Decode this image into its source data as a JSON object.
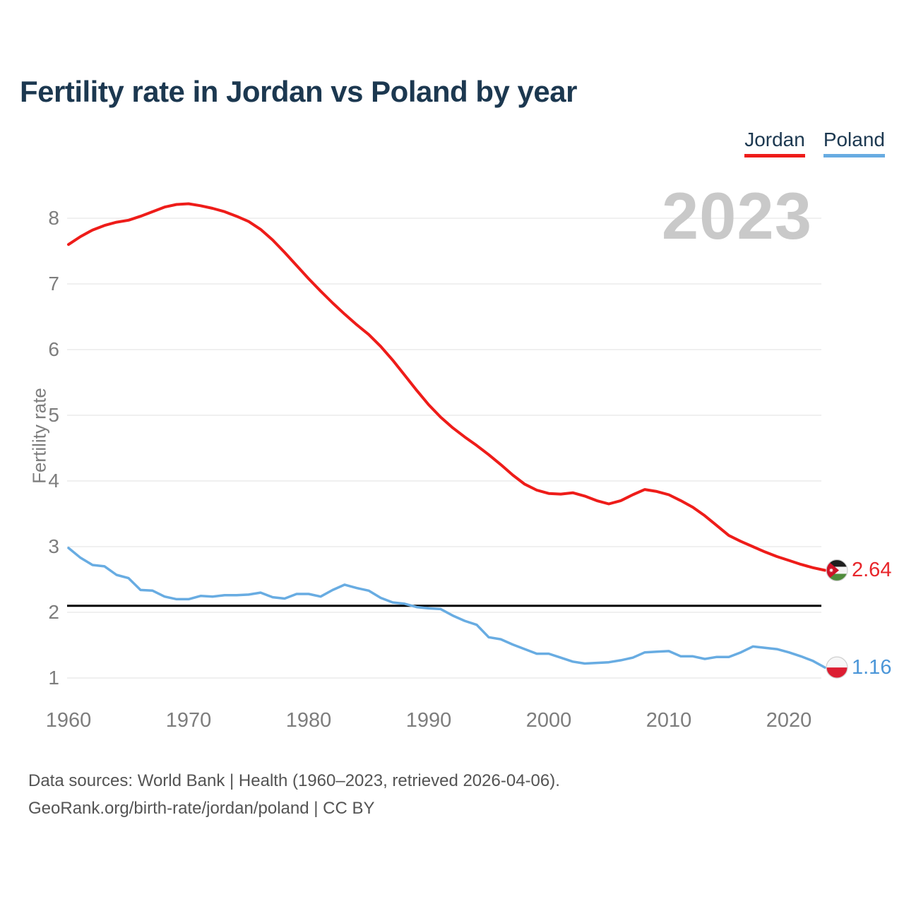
{
  "header": {
    "title": "Fertility rate in Jordan vs Poland by year"
  },
  "legend": {
    "items": [
      {
        "label": "Jordan",
        "color": "#ee1c19"
      },
      {
        "label": "Poland",
        "color": "#68ace2"
      }
    ]
  },
  "watermark": "2023",
  "footer": {
    "line1": "Data sources: World Bank | Health (1960–2023, retrieved 2026-04-06).",
    "line2": "GeoRank.org/birth-rate/jordan/poland | CC BY"
  },
  "chart_data": {
    "type": "line",
    "title": "Fertility rate in Jordan vs Poland by year",
    "xlabel": "",
    "ylabel": "Fertility rate",
    "xlim": [
      1960,
      2023
    ],
    "ylim": [
      0.9,
      8.6
    ],
    "x_ticks": [
      1960,
      1970,
      1980,
      1990,
      2000,
      2010,
      2020
    ],
    "y_ticks": [
      1,
      2,
      3,
      4,
      5,
      6,
      7,
      8
    ],
    "grid": "horizontal",
    "legend_position": "top-right",
    "watermark": "2023",
    "reference_line": {
      "value": 2.1,
      "color": "#000000"
    },
    "grid_color": "#ececec",
    "x": [
      1960,
      1961,
      1962,
      1963,
      1964,
      1965,
      1966,
      1967,
      1968,
      1969,
      1970,
      1971,
      1972,
      1973,
      1974,
      1975,
      1976,
      1977,
      1978,
      1979,
      1980,
      1981,
      1982,
      1983,
      1984,
      1985,
      1986,
      1987,
      1988,
      1989,
      1990,
      1991,
      1992,
      1993,
      1994,
      1995,
      1996,
      1997,
      1998,
      1999,
      2000,
      2001,
      2002,
      2003,
      2004,
      2005,
      2006,
      2007,
      2008,
      2009,
      2010,
      2011,
      2012,
      2013,
      2014,
      2015,
      2016,
      2017,
      2018,
      2019,
      2020,
      2021,
      2022,
      2023
    ],
    "series": [
      {
        "name": "Jordan",
        "color": "#ee1c19",
        "end_value": 2.64,
        "end_label": "2.64",
        "flag": "jordan",
        "values": [
          7.6,
          7.72,
          7.82,
          7.89,
          7.94,
          7.97,
          8.03,
          8.1,
          8.17,
          8.21,
          8.22,
          8.19,
          8.15,
          8.1,
          8.03,
          7.95,
          7.83,
          7.67,
          7.48,
          7.28,
          7.08,
          6.89,
          6.71,
          6.54,
          6.38,
          6.23,
          6.05,
          5.84,
          5.61,
          5.38,
          5.16,
          4.97,
          4.81,
          4.67,
          4.54,
          4.4,
          4.25,
          4.09,
          3.95,
          3.86,
          3.81,
          3.8,
          3.82,
          3.77,
          3.7,
          3.65,
          3.7,
          3.79,
          3.87,
          3.84,
          3.79,
          3.7,
          3.6,
          3.47,
          3.32,
          3.17,
          3.08,
          3.0,
          2.92,
          2.85,
          2.79,
          2.73,
          2.68,
          2.64
        ]
      },
      {
        "name": "Poland",
        "color": "#68ace2",
        "end_value": 1.16,
        "end_label": "1.16",
        "flag": "poland",
        "values": [
          2.98,
          2.83,
          2.72,
          2.7,
          2.57,
          2.52,
          2.34,
          2.33,
          2.24,
          2.2,
          2.2,
          2.25,
          2.24,
          2.26,
          2.26,
          2.27,
          2.3,
          2.23,
          2.21,
          2.28,
          2.28,
          2.24,
          2.34,
          2.42,
          2.37,
          2.33,
          2.22,
          2.15,
          2.13,
          2.08,
          2.06,
          2.05,
          1.95,
          1.87,
          1.81,
          1.62,
          1.59,
          1.51,
          1.44,
          1.37,
          1.37,
          1.31,
          1.25,
          1.22,
          1.23,
          1.24,
          1.27,
          1.31,
          1.39,
          1.4,
          1.41,
          1.33,
          1.33,
          1.29,
          1.32,
          1.32,
          1.39,
          1.48,
          1.46,
          1.44,
          1.39,
          1.33,
          1.26,
          1.16
        ]
      }
    ]
  }
}
